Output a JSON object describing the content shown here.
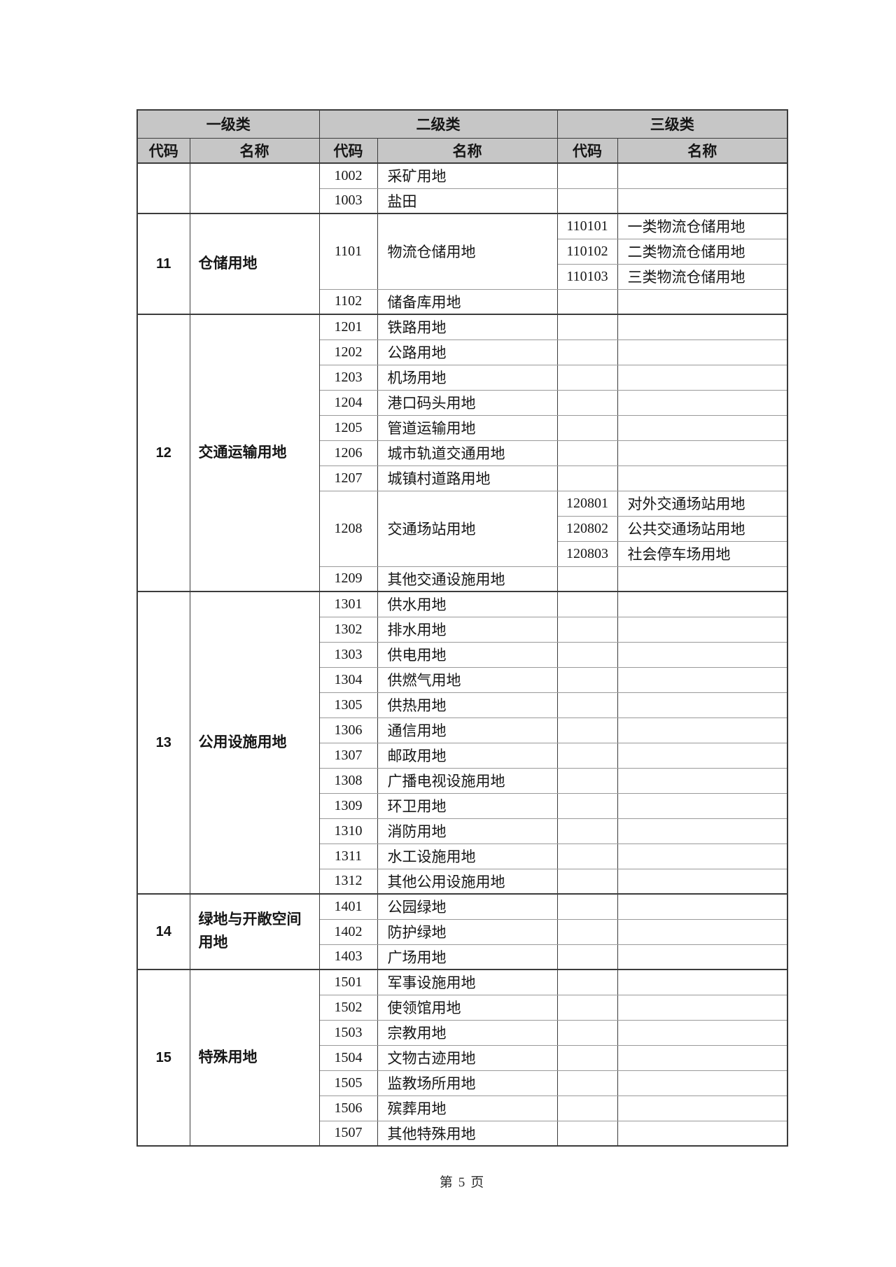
{
  "colors": {
    "header_background": "#c6c6c6",
    "grid_line_dark": "#3c3c3c",
    "grid_line_light": "#9a9a9a"
  },
  "footer": {
    "prefix": "第",
    "page_number": "5",
    "suffix": "页"
  },
  "table": {
    "header": {
      "level1": "一级类",
      "level2": "二级类",
      "level3": "三级类",
      "code": "代码",
      "name": "名称"
    },
    "sections": [
      {
        "l1_code": "",
        "l1_name": "",
        "entries": [
          {
            "code": "1002",
            "name": "采矿用地",
            "l3": []
          },
          {
            "code": "1003",
            "name": "盐田",
            "l3": []
          }
        ]
      },
      {
        "l1_code": "11",
        "l1_name": "仓储用地",
        "entries": [
          {
            "code": "1101",
            "name": "物流仓储用地",
            "l3": [
              {
                "code": "110101",
                "name": "一类物流仓储用地"
              },
              {
                "code": "110102",
                "name": "二类物流仓储用地"
              },
              {
                "code": "110103",
                "name": "三类物流仓储用地"
              }
            ]
          },
          {
            "code": "1102",
            "name": "储备库用地",
            "l3": []
          }
        ]
      },
      {
        "l1_code": "12",
        "l1_name": "交通运输用地",
        "entries": [
          {
            "code": "1201",
            "name": "铁路用地",
            "l3": []
          },
          {
            "code": "1202",
            "name": "公路用地",
            "l3": []
          },
          {
            "code": "1203",
            "name": "机场用地",
            "l3": []
          },
          {
            "code": "1204",
            "name": "港口码头用地",
            "l3": []
          },
          {
            "code": "1205",
            "name": "管道运输用地",
            "l3": []
          },
          {
            "code": "1206",
            "name": "城市轨道交通用地",
            "l3": []
          },
          {
            "code": "1207",
            "name": "城镇村道路用地",
            "l3": []
          },
          {
            "code": "1208",
            "name": "交通场站用地",
            "l3": [
              {
                "code": "120801",
                "name": "对外交通场站用地"
              },
              {
                "code": "120802",
                "name": "公共交通场站用地"
              },
              {
                "code": "120803",
                "name": "社会停车场用地"
              }
            ]
          },
          {
            "code": "1209",
            "name": "其他交通设施用地",
            "l3": []
          }
        ]
      },
      {
        "l1_code": "13",
        "l1_name": "公用设施用地",
        "entries": [
          {
            "code": "1301",
            "name": "供水用地",
            "l3": []
          },
          {
            "code": "1302",
            "name": "排水用地",
            "l3": []
          },
          {
            "code": "1303",
            "name": "供电用地",
            "l3": []
          },
          {
            "code": "1304",
            "name": "供燃气用地",
            "l3": []
          },
          {
            "code": "1305",
            "name": "供热用地",
            "l3": []
          },
          {
            "code": "1306",
            "name": "通信用地",
            "l3": []
          },
          {
            "code": "1307",
            "name": "邮政用地",
            "l3": []
          },
          {
            "code": "1308",
            "name": "广播电视设施用地",
            "l3": []
          },
          {
            "code": "1309",
            "name": "环卫用地",
            "l3": []
          },
          {
            "code": "1310",
            "name": "消防用地",
            "l3": []
          },
          {
            "code": "1311",
            "name": "水工设施用地",
            "l3": []
          },
          {
            "code": "1312",
            "name": "其他公用设施用地",
            "l3": []
          }
        ]
      },
      {
        "l1_code": "14",
        "l1_name": "绿地与开敞空间用地",
        "entries": [
          {
            "code": "1401",
            "name": "公园绿地",
            "l3": []
          },
          {
            "code": "1402",
            "name": "防护绿地",
            "l3": []
          },
          {
            "code": "1403",
            "name": "广场用地",
            "l3": []
          }
        ]
      },
      {
        "l1_code": "15",
        "l1_name": "特殊用地",
        "entries": [
          {
            "code": "1501",
            "name": "军事设施用地",
            "l3": []
          },
          {
            "code": "1502",
            "name": "使领馆用地",
            "l3": []
          },
          {
            "code": "1503",
            "name": "宗教用地",
            "l3": []
          },
          {
            "code": "1504",
            "name": "文物古迹用地",
            "l3": []
          },
          {
            "code": "1505",
            "name": "监教场所用地",
            "l3": []
          },
          {
            "code": "1506",
            "name": "殡葬用地",
            "l3": []
          },
          {
            "code": "1507",
            "name": "其他特殊用地",
            "l3": []
          }
        ]
      }
    ]
  }
}
